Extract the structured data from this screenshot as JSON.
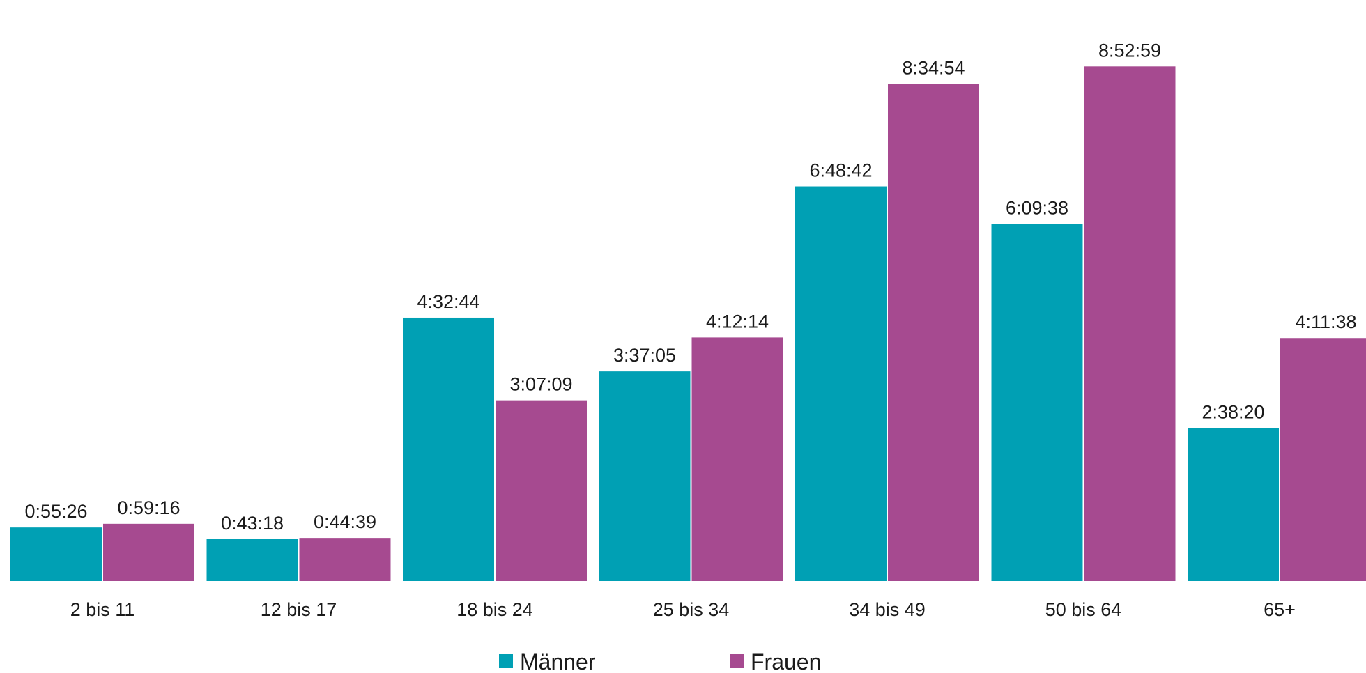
{
  "chart_data": {
    "type": "bar",
    "title": "",
    "xlabel": "",
    "ylabel": "",
    "categories": [
      "2 bis 11",
      "12 bis 17",
      "18 bis 24",
      "25 bis 34",
      "34 bis 49",
      "50 bis 64",
      "65+"
    ],
    "series": [
      {
        "name": "Männer",
        "color": "#00A0B4",
        "values": [
          0.924,
          0.722,
          4.546,
          3.618,
          6.812,
          6.161,
          2.639
        ],
        "labels": [
          "0:55:26",
          "0:43:18",
          "4:32:44",
          "3:37:05",
          "6:48:42",
          "6:09:38",
          "2:38:20"
        ]
      },
      {
        "name": "Frauen",
        "color": "#A64A90",
        "values": [
          0.988,
          0.744,
          3.119,
          4.204,
          8.582,
          8.883,
          4.194
        ],
        "labels": [
          "0:59:16",
          "0:44:39",
          "3:07:09",
          "4:12:14",
          "8:34:54",
          "8:52:59",
          "4:11:38"
        ]
      }
    ],
    "ylim": [
      0,
      9.5
    ],
    "grid": false,
    "legend_position": "bottom-center"
  }
}
